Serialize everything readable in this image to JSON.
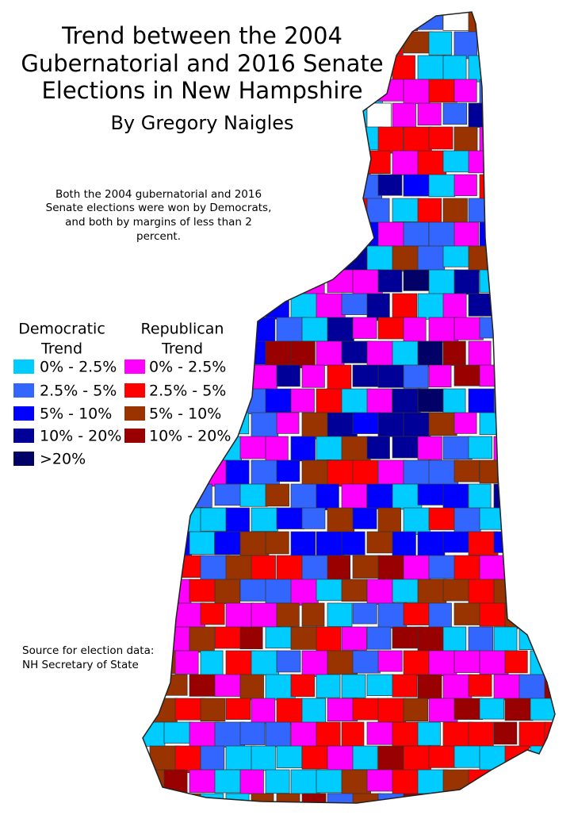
{
  "title": [
    "Trend between the 2004",
    "Gubernatorial and 2016 Senate",
    "Elections in New Hampshire"
  ],
  "author": "By Gregory Naigles",
  "note": [
    "Both the 2004 gubernatorial and 2016",
    "Senate elections were won by Democrats,",
    "and both by margins of less than 2",
    "percent."
  ],
  "legend": {
    "democratic": {
      "title": [
        "Democratic",
        "Trend"
      ],
      "items": [
        {
          "label": "0% - 2.5%",
          "color": "#00ccff"
        },
        {
          "label": "2.5% - 5%",
          "color": "#3366ff"
        },
        {
          "label": "5% - 10%",
          "color": "#0000ff"
        },
        {
          "label": "10% - 20%",
          "color": "#000099"
        },
        {
          "label": ">20%",
          "color": "#000066"
        }
      ]
    },
    "republican": {
      "title": [
        "Republican",
        "Trend"
      ],
      "items": [
        {
          "label": "0% - 2.5%",
          "color": "#ff00ff"
        },
        {
          "label": "2.5% - 5%",
          "color": "#ff0000"
        },
        {
          "label": "5% - 10%",
          "color": "#993300"
        },
        {
          "label": "10% - 20%",
          "color": "#990000"
        }
      ]
    }
  },
  "source": [
    "Source for election data:",
    "NH Secretary of State"
  ]
}
